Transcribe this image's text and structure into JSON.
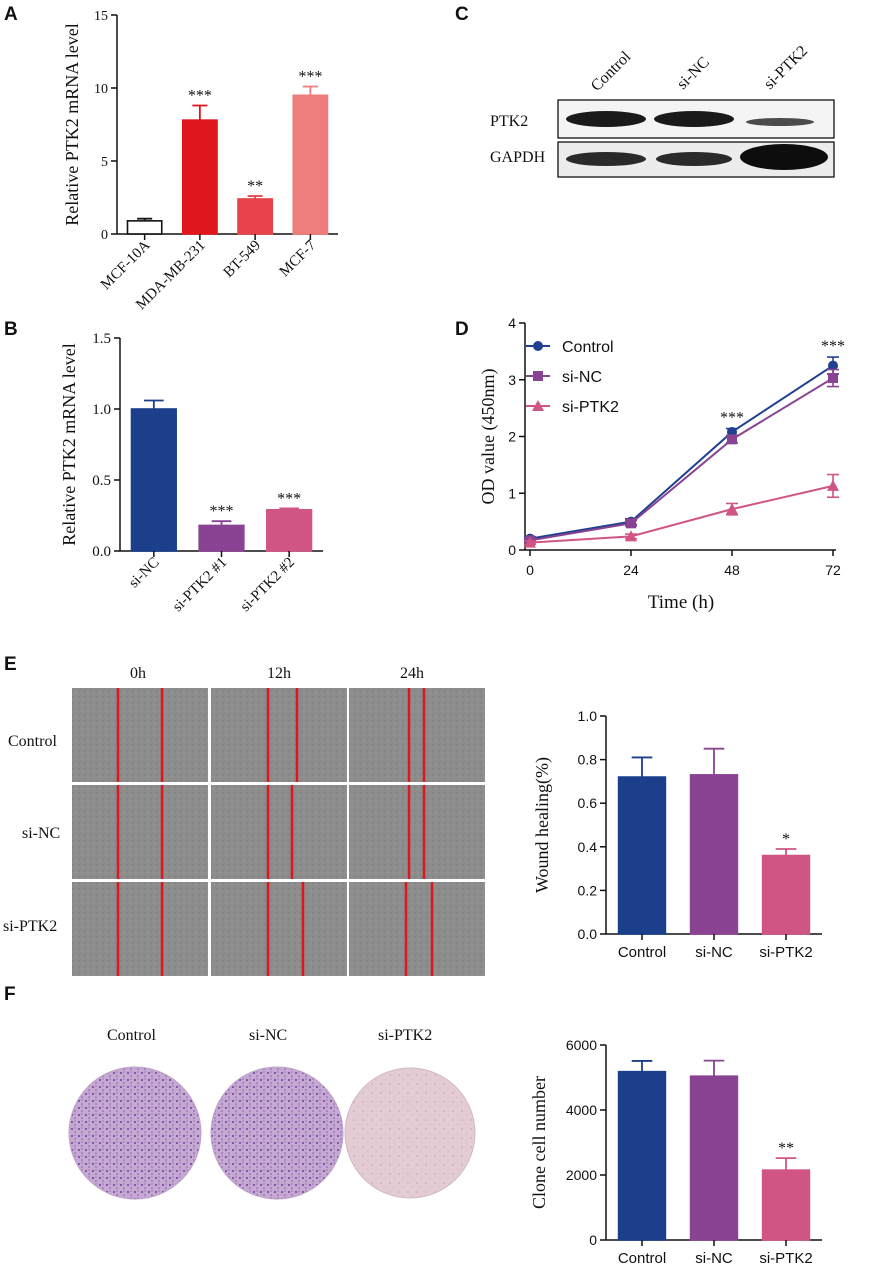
{
  "colors": {
    "navy": "#1b3f8b",
    "purple": "#8a4393",
    "pink": "#d05585",
    "red_dark": "#e0161e",
    "red_mid": "#e8434a",
    "red_light": "#ee7d7d",
    "marker_blue": "#21408f"
  },
  "chart_data": [
    {
      "panel": "A",
      "type": "bar",
      "ylabel": "Relative PTK2 mRNA level",
      "ylim": [
        0,
        15
      ],
      "yticks": [
        "0",
        "5",
        "10",
        "15"
      ],
      "categories": [
        "MCF-10A",
        "MDA-MB-231",
        "BT-549",
        "MCF-7"
      ],
      "values": [
        0.9,
        7.8,
        2.4,
        9.5
      ],
      "errors": [
        0.15,
        1.0,
        0.2,
        0.6
      ],
      "significance": [
        "",
        "***",
        "**",
        "***"
      ]
    },
    {
      "panel": "B",
      "type": "bar",
      "ylabel": "Relative PTK2 mRNA level",
      "ylim": [
        0,
        1.5
      ],
      "yticks": [
        "0.0",
        "0.5",
        "1.0",
        "1.5"
      ],
      "categories": [
        "si-NC",
        "si-PTK2 #1",
        "si-PTK2 #2"
      ],
      "values": [
        1.0,
        0.18,
        0.29
      ],
      "errors": [
        0.06,
        0.03,
        0.01
      ],
      "significance": [
        "",
        "***",
        "***"
      ]
    },
    {
      "panel": "C",
      "type": "western-blot",
      "lanes": [
        "Control",
        "si-NC",
        "si-PTK2"
      ],
      "rows": [
        "PTK2",
        "GAPDH"
      ]
    },
    {
      "panel": "D",
      "type": "line",
      "xlabel": "Time (h)",
      "ylabel": "OD value (450nm)",
      "x": [
        0,
        24,
        48,
        72
      ],
      "xticks": [
        "0",
        "24",
        "48",
        "72"
      ],
      "ylim": [
        0,
        4
      ],
      "yticks": [
        "0",
        "1",
        "2",
        "3",
        "4"
      ],
      "series": [
        {
          "name": "Control",
          "marker": "circle",
          "values": [
            0.2,
            0.5,
            2.08,
            3.25
          ],
          "errors": [
            0.03,
            0.05,
            0.06,
            0.15
          ]
        },
        {
          "name": "si-NC",
          "marker": "square",
          "values": [
            0.17,
            0.47,
            1.95,
            3.03
          ],
          "errors": [
            0.03,
            0.05,
            0.06,
            0.15
          ]
        },
        {
          "name": "si-PTK2",
          "marker": "triangle",
          "values": [
            0.13,
            0.24,
            0.72,
            1.13
          ],
          "errors": [
            0.03,
            0.04,
            0.1,
            0.2
          ]
        }
      ],
      "significance": [
        {
          "x": 48,
          "label": "***"
        },
        {
          "x": 72,
          "label": "***"
        }
      ]
    },
    {
      "panel": "E",
      "type": "bar",
      "ylabel": "Wound healing(%)",
      "ylim": [
        0,
        1.0
      ],
      "yticks": [
        "0.0",
        "0.2",
        "0.4",
        "0.6",
        "0.8",
        "1.0"
      ],
      "categories": [
        "Control",
        "si-NC",
        "si-PTK2"
      ],
      "values": [
        0.72,
        0.73,
        0.36
      ],
      "errors": [
        0.09,
        0.12,
        0.03
      ],
      "significance": [
        "",
        "",
        "*"
      ]
    },
    {
      "panel": "F",
      "type": "bar",
      "ylabel": "Clone cell number",
      "ylim": [
        0,
        6000
      ],
      "yticks": [
        "0",
        "2000",
        "4000",
        "6000"
      ],
      "categories": [
        "Control",
        "si-NC",
        "si-PTK2"
      ],
      "values": [
        5180,
        5040,
        2150
      ],
      "errors": [
        330,
        480,
        370
      ],
      "significance": [
        "",
        "",
        "**"
      ]
    }
  ],
  "panels": {
    "labels": [
      "A",
      "B",
      "C",
      "D",
      "E",
      "F"
    ],
    "scratch_times": [
      "0h",
      "12h",
      "24h"
    ],
    "scratch_groups": [
      "Control",
      "si-NC",
      "si-PTK2"
    ],
    "colony_groups": [
      "Control",
      "si-NC",
      "si-PTK2"
    ]
  }
}
